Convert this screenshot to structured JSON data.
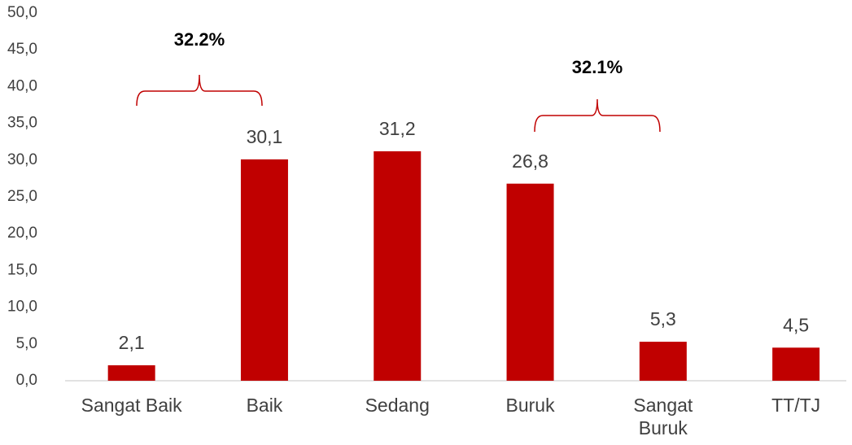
{
  "chart_data": {
    "type": "bar",
    "categories": [
      "Sangat Baik",
      "Baik",
      "Sedang",
      "Buruk",
      "Sangat Buruk",
      "TT/TJ"
    ],
    "values": [
      2.1,
      30.1,
      31.2,
      26.8,
      5.3,
      4.5
    ],
    "value_labels": [
      "2,1",
      "30,1",
      "31,2",
      "26,8",
      "5,3",
      "4,5"
    ],
    "color": "#c00000",
    "ylim": [
      0,
      50
    ],
    "yticks": [
      {
        "value": 0,
        "label": "0,0"
      },
      {
        "value": 5,
        "label": "5,0"
      },
      {
        "value": 10,
        "label": "10,0"
      },
      {
        "value": 15,
        "label": "15,0"
      },
      {
        "value": 20,
        "label": "20,0"
      },
      {
        "value": 25,
        "label": "25,0"
      },
      {
        "value": 30,
        "label": "30,0"
      },
      {
        "value": 35,
        "label": "35,0"
      },
      {
        "value": 40,
        "label": "40,0"
      },
      {
        "value": 45,
        "label": "45,0"
      },
      {
        "value": 50,
        "label": "50,0"
      }
    ],
    "annotations": [
      "32.2%",
      "32.1%"
    ]
  }
}
